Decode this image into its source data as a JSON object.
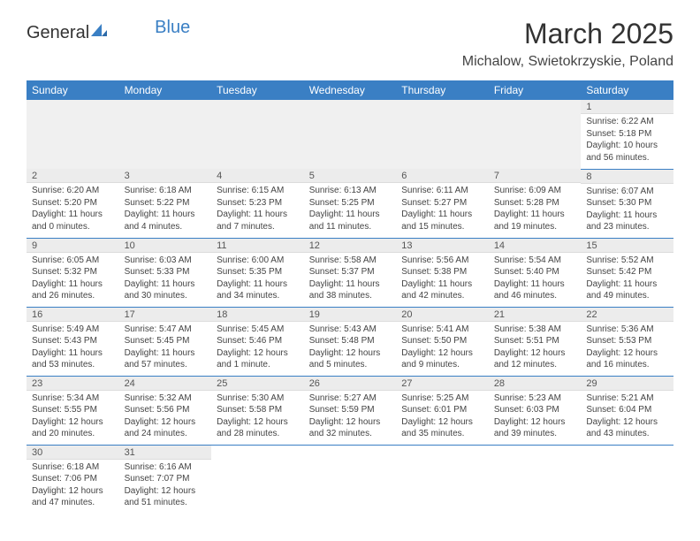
{
  "brand": {
    "part1": "General",
    "part2": "Blue"
  },
  "title": "March 2025",
  "location": "Michalow, Swietokrzyskie, Poland",
  "colors": {
    "accent": "#3a7fc4",
    "header_bg": "#3a7fc4",
    "header_text": "#ffffff",
    "daynum_bg": "#ececec",
    "blank_bg": "#f0f0f0",
    "border": "#3a7fc4",
    "text": "#333333"
  },
  "weekdays": [
    "Sunday",
    "Monday",
    "Tuesday",
    "Wednesday",
    "Thursday",
    "Friday",
    "Saturday"
  ],
  "weeks": [
    [
      null,
      null,
      null,
      null,
      null,
      null,
      {
        "n": "1",
        "sunrise": "Sunrise: 6:22 AM",
        "sunset": "Sunset: 5:18 PM",
        "daylight": "Daylight: 10 hours and 56 minutes."
      }
    ],
    [
      {
        "n": "2",
        "sunrise": "Sunrise: 6:20 AM",
        "sunset": "Sunset: 5:20 PM",
        "daylight": "Daylight: 11 hours and 0 minutes."
      },
      {
        "n": "3",
        "sunrise": "Sunrise: 6:18 AM",
        "sunset": "Sunset: 5:22 PM",
        "daylight": "Daylight: 11 hours and 4 minutes."
      },
      {
        "n": "4",
        "sunrise": "Sunrise: 6:15 AM",
        "sunset": "Sunset: 5:23 PM",
        "daylight": "Daylight: 11 hours and 7 minutes."
      },
      {
        "n": "5",
        "sunrise": "Sunrise: 6:13 AM",
        "sunset": "Sunset: 5:25 PM",
        "daylight": "Daylight: 11 hours and 11 minutes."
      },
      {
        "n": "6",
        "sunrise": "Sunrise: 6:11 AM",
        "sunset": "Sunset: 5:27 PM",
        "daylight": "Daylight: 11 hours and 15 minutes."
      },
      {
        "n": "7",
        "sunrise": "Sunrise: 6:09 AM",
        "sunset": "Sunset: 5:28 PM",
        "daylight": "Daylight: 11 hours and 19 minutes."
      },
      {
        "n": "8",
        "sunrise": "Sunrise: 6:07 AM",
        "sunset": "Sunset: 5:30 PM",
        "daylight": "Daylight: 11 hours and 23 minutes."
      }
    ],
    [
      {
        "n": "9",
        "sunrise": "Sunrise: 6:05 AM",
        "sunset": "Sunset: 5:32 PM",
        "daylight": "Daylight: 11 hours and 26 minutes."
      },
      {
        "n": "10",
        "sunrise": "Sunrise: 6:03 AM",
        "sunset": "Sunset: 5:33 PM",
        "daylight": "Daylight: 11 hours and 30 minutes."
      },
      {
        "n": "11",
        "sunrise": "Sunrise: 6:00 AM",
        "sunset": "Sunset: 5:35 PM",
        "daylight": "Daylight: 11 hours and 34 minutes."
      },
      {
        "n": "12",
        "sunrise": "Sunrise: 5:58 AM",
        "sunset": "Sunset: 5:37 PM",
        "daylight": "Daylight: 11 hours and 38 minutes."
      },
      {
        "n": "13",
        "sunrise": "Sunrise: 5:56 AM",
        "sunset": "Sunset: 5:38 PM",
        "daylight": "Daylight: 11 hours and 42 minutes."
      },
      {
        "n": "14",
        "sunrise": "Sunrise: 5:54 AM",
        "sunset": "Sunset: 5:40 PM",
        "daylight": "Daylight: 11 hours and 46 minutes."
      },
      {
        "n": "15",
        "sunrise": "Sunrise: 5:52 AM",
        "sunset": "Sunset: 5:42 PM",
        "daylight": "Daylight: 11 hours and 49 minutes."
      }
    ],
    [
      {
        "n": "16",
        "sunrise": "Sunrise: 5:49 AM",
        "sunset": "Sunset: 5:43 PM",
        "daylight": "Daylight: 11 hours and 53 minutes."
      },
      {
        "n": "17",
        "sunrise": "Sunrise: 5:47 AM",
        "sunset": "Sunset: 5:45 PM",
        "daylight": "Daylight: 11 hours and 57 minutes."
      },
      {
        "n": "18",
        "sunrise": "Sunrise: 5:45 AM",
        "sunset": "Sunset: 5:46 PM",
        "daylight": "Daylight: 12 hours and 1 minute."
      },
      {
        "n": "19",
        "sunrise": "Sunrise: 5:43 AM",
        "sunset": "Sunset: 5:48 PM",
        "daylight": "Daylight: 12 hours and 5 minutes."
      },
      {
        "n": "20",
        "sunrise": "Sunrise: 5:41 AM",
        "sunset": "Sunset: 5:50 PM",
        "daylight": "Daylight: 12 hours and 9 minutes."
      },
      {
        "n": "21",
        "sunrise": "Sunrise: 5:38 AM",
        "sunset": "Sunset: 5:51 PM",
        "daylight": "Daylight: 12 hours and 12 minutes."
      },
      {
        "n": "22",
        "sunrise": "Sunrise: 5:36 AM",
        "sunset": "Sunset: 5:53 PM",
        "daylight": "Daylight: 12 hours and 16 minutes."
      }
    ],
    [
      {
        "n": "23",
        "sunrise": "Sunrise: 5:34 AM",
        "sunset": "Sunset: 5:55 PM",
        "daylight": "Daylight: 12 hours and 20 minutes."
      },
      {
        "n": "24",
        "sunrise": "Sunrise: 5:32 AM",
        "sunset": "Sunset: 5:56 PM",
        "daylight": "Daylight: 12 hours and 24 minutes."
      },
      {
        "n": "25",
        "sunrise": "Sunrise: 5:30 AM",
        "sunset": "Sunset: 5:58 PM",
        "daylight": "Daylight: 12 hours and 28 minutes."
      },
      {
        "n": "26",
        "sunrise": "Sunrise: 5:27 AM",
        "sunset": "Sunset: 5:59 PM",
        "daylight": "Daylight: 12 hours and 32 minutes."
      },
      {
        "n": "27",
        "sunrise": "Sunrise: 5:25 AM",
        "sunset": "Sunset: 6:01 PM",
        "daylight": "Daylight: 12 hours and 35 minutes."
      },
      {
        "n": "28",
        "sunrise": "Sunrise: 5:23 AM",
        "sunset": "Sunset: 6:03 PM",
        "daylight": "Daylight: 12 hours and 39 minutes."
      },
      {
        "n": "29",
        "sunrise": "Sunrise: 5:21 AM",
        "sunset": "Sunset: 6:04 PM",
        "daylight": "Daylight: 12 hours and 43 minutes."
      }
    ],
    [
      {
        "n": "30",
        "sunrise": "Sunrise: 6:18 AM",
        "sunset": "Sunset: 7:06 PM",
        "daylight": "Daylight: 12 hours and 47 minutes."
      },
      {
        "n": "31",
        "sunrise": "Sunrise: 6:16 AM",
        "sunset": "Sunset: 7:07 PM",
        "daylight": "Daylight: 12 hours and 51 minutes."
      },
      null,
      null,
      null,
      null,
      null
    ]
  ]
}
